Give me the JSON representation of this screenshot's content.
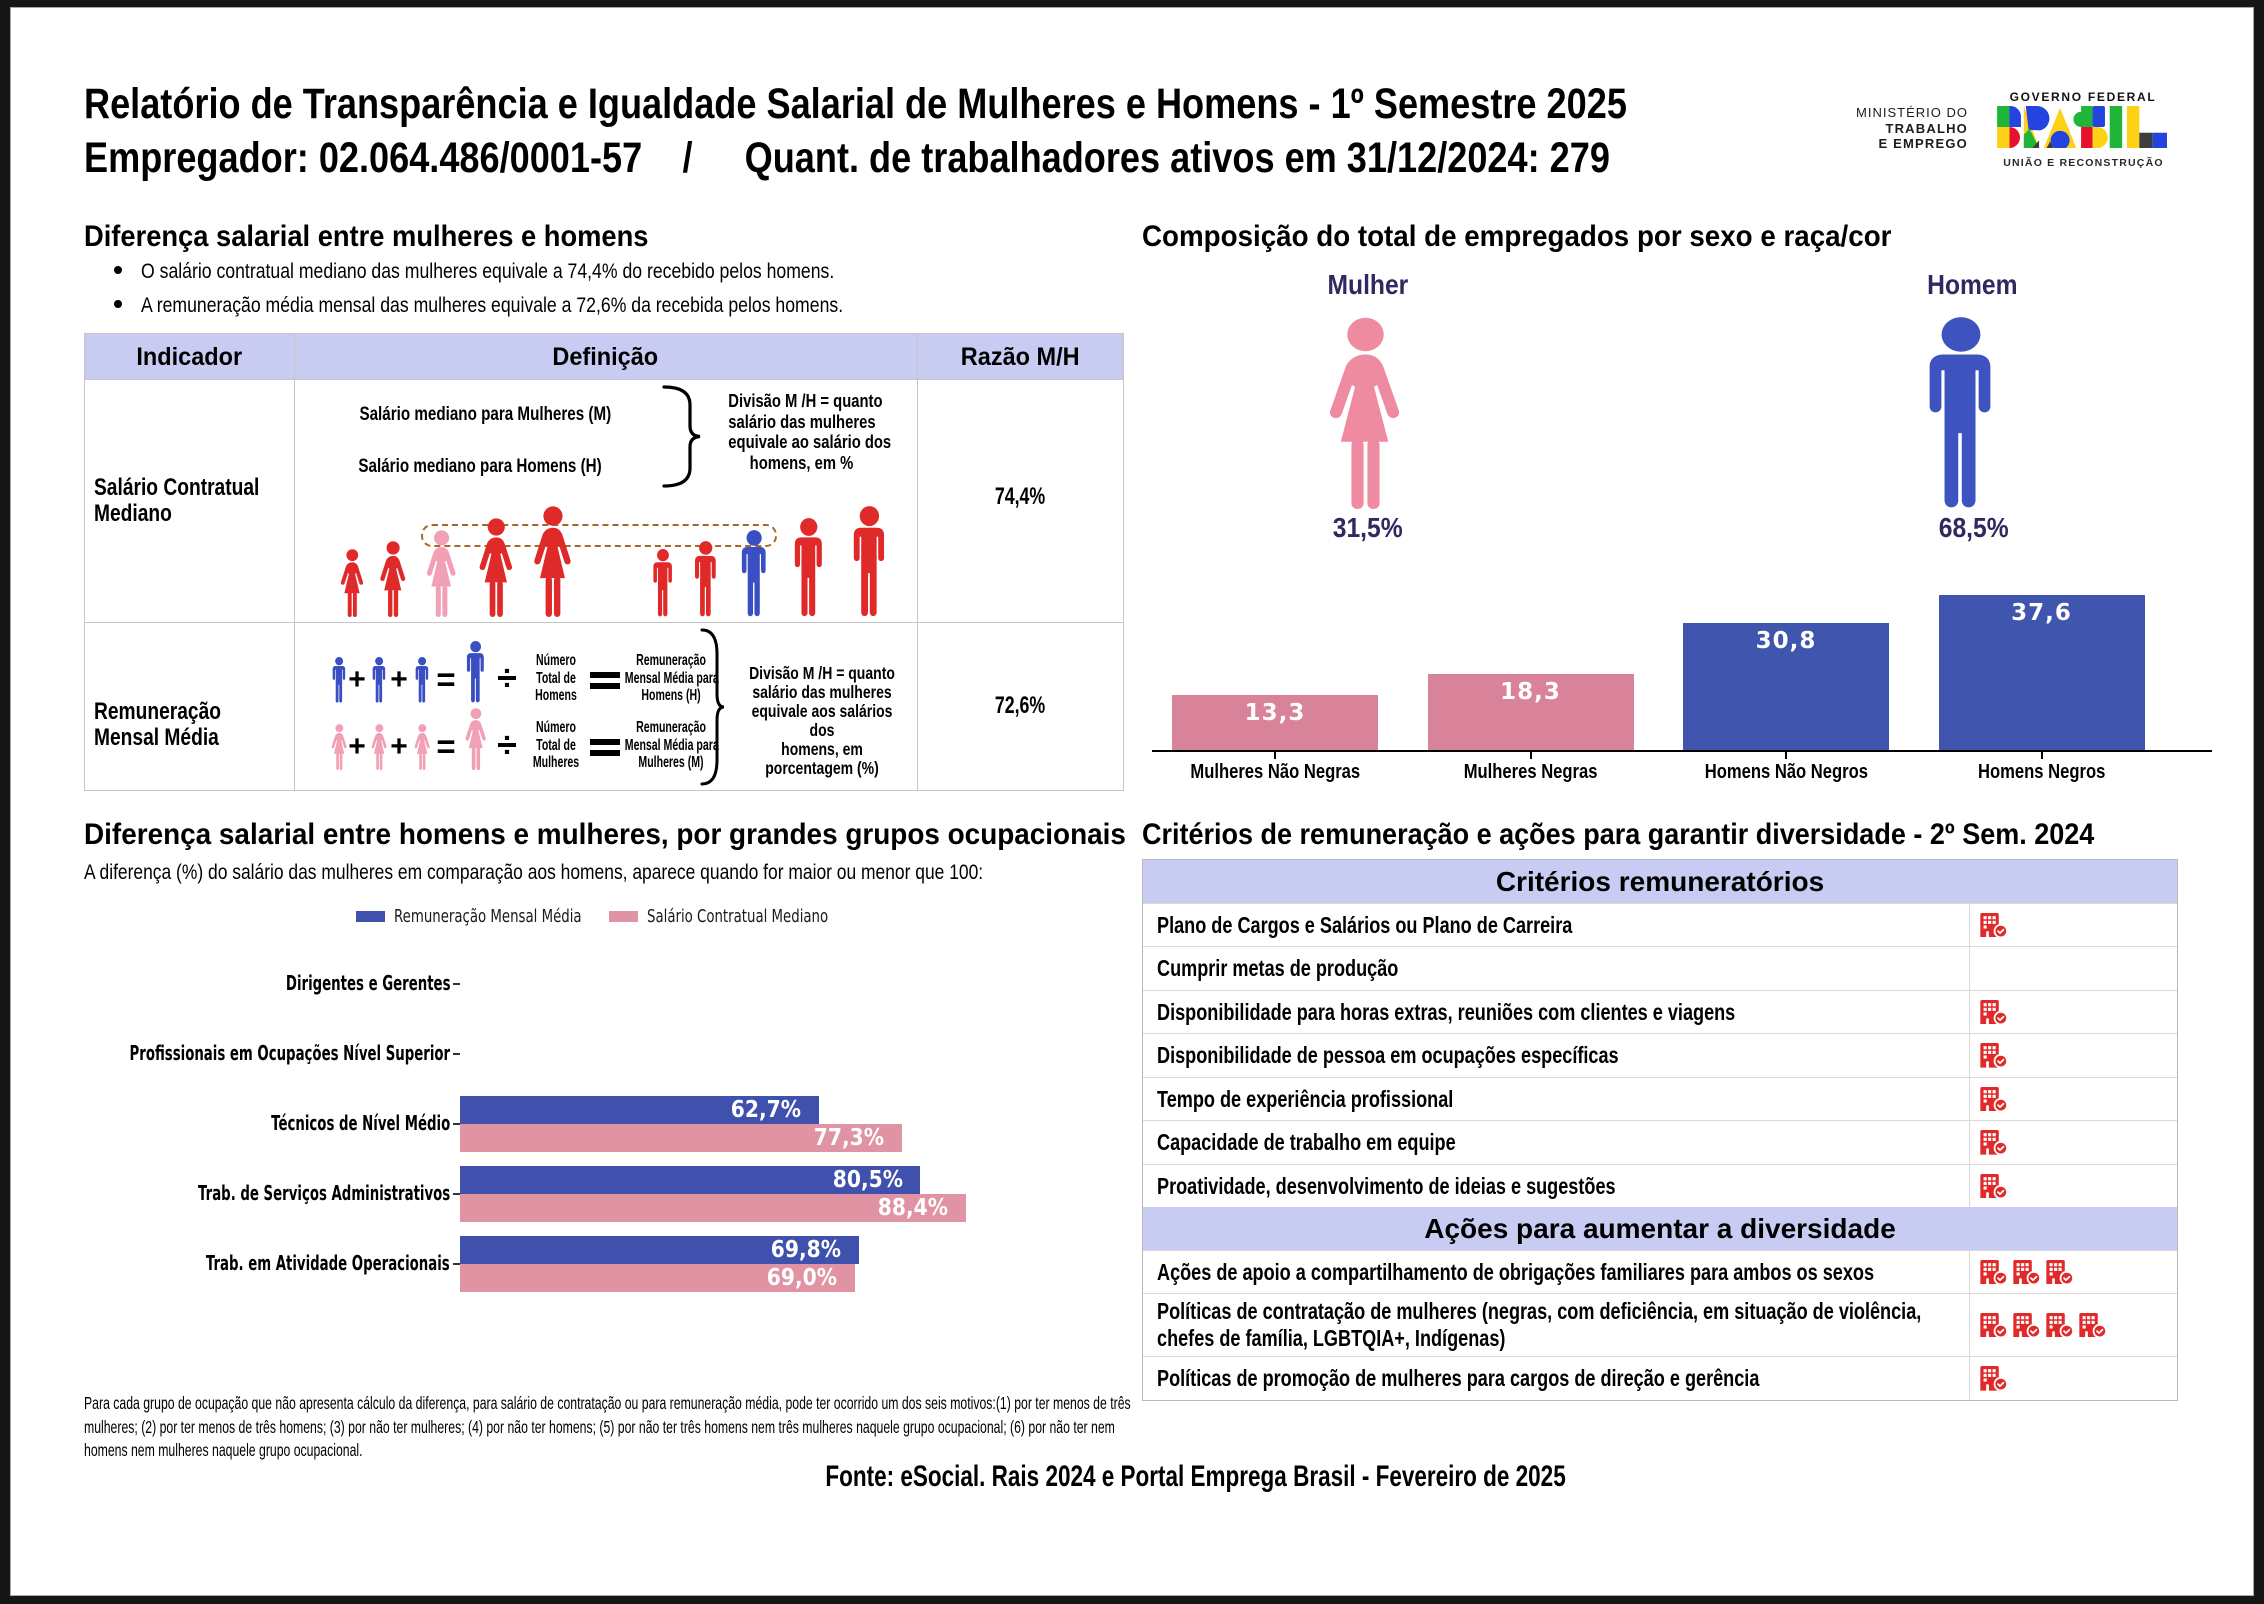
{
  "report": {
    "title": "Relatório de Transparência e Igualdade Salarial de Mulheres e Homens - 1º Semestre 2025",
    "employer": "Empregador: 02.064.486/0001-57",
    "separator": "/",
    "active_workers": "Quant. de trabalhadores ativos em 31/12/2024: 279",
    "footer_source": "Fonte: eSocial. Rais 2024 e Portal Emprega Brasil - Fevereiro de 2025"
  },
  "gov_branding": {
    "ministry_line1": "MINISTÉRIO DO",
    "ministry_line2": "TRABALHO",
    "ministry_line3": "E EMPREGO",
    "government_label": "GOVERNO FEDERAL",
    "brand": "BRASIL",
    "motto": "UNIÃO E RECONSTRUÇÃO"
  },
  "salary_gap": {
    "heading": "Diferença salarial entre mulheres e homens",
    "bullets": [
      "O salário contratual mediano das mulheres equivale a 74,4% do recebido pelos homens.",
      "A remuneração média mensal das mulheres equivale a 72,6% da recebida pelos homens."
    ],
    "table": {
      "headers": [
        "Indicador",
        "Definição",
        "Razão M/H"
      ],
      "row1": {
        "indicator": "Salário Contratual Mediano",
        "def_line1": "Salário mediano para Mulheres (M)",
        "def_line2": "Salário mediano para Homens (H)",
        "explanation": [
          "Divisão M /H = quanto",
          "salário das mulheres",
          "equivale ao salário dos",
          "homens, em %"
        ],
        "ratio": "74,4%",
        "pictograms": {
          "women": 5,
          "men": 5,
          "highlighted_woman_index": 2,
          "highlighted_man_index": 2
        }
      },
      "row2": {
        "indicator": "Remuneração Mensal Média",
        "formula": {
          "plus": "+",
          "equals": "=",
          "divide": "÷",
          "men": {
            "count_label": [
              "Número",
              "Total de",
              "Homens"
            ],
            "result_label": [
              "Remuneração",
              "Mensal Média para",
              "Homens (H)"
            ]
          },
          "women": {
            "count_label": [
              "Número",
              "Total de",
              "Mulheres"
            ],
            "result_label": [
              "Remuneração",
              "Mensal Média para",
              "Mulheres (M)"
            ]
          }
        },
        "explanation": [
          "Divisão M /H = quanto",
          "salário das mulheres",
          "equivale aos salários",
          "dos",
          "homens, em",
          "porcentagem (%)"
        ],
        "ratio": "72,6%"
      }
    }
  },
  "composition": {
    "heading": "Composição do total de empregados por sexo e raça/cor",
    "female_label": "Mulher",
    "female_value": "31,5%",
    "male_label": "Homem",
    "male_value": "68,5%"
  },
  "occupational": {
    "heading": "Diferença salarial entre homens e mulheres, por grandes grupos ocupacionais",
    "subtitle": "A diferença (%) do salário das mulheres em comparação aos homens, aparece quando for maior ou menor que 100:",
    "footnote": "Para cada grupo de ocupação que não apresenta cálculo da diferença, para salário de contratação ou para remuneração média, pode ter ocorrido um dos seis motivos:(1) por ter menos de três mulheres; (2) por ter menos de três homens; (3) por não ter mulheres; (4) por não ter homens; (5) por não ter três homens nem três mulheres naquele grupo ocupacional; (6) por não ter nem homens nem mulheres naquele grupo ocupacional."
  },
  "criteria": {
    "heading": "Critérios de remuneração e ações para garantir diversidade - 2º Sem. 2024",
    "sections": [
      {
        "title": "Critérios remuneratórios",
        "rows": [
          {
            "label": "Plano de Cargos e Salários ou Plano de Carreira",
            "checks": 1
          },
          {
            "label": "Cumprir metas de produção",
            "checks": 0
          },
          {
            "label": "Disponibilidade para horas extras, reuniões com clientes e viagens",
            "checks": 1
          },
          {
            "label": "Disponibilidade de pessoa em ocupações específicas",
            "checks": 1
          },
          {
            "label": "Tempo de experiência profissional",
            "checks": 1
          },
          {
            "label": "Capacidade de trabalho em equipe",
            "checks": 1
          },
          {
            "label": "Proatividade, desenvolvimento de ideias e sugestões",
            "checks": 1
          }
        ]
      },
      {
        "title": "Ações para aumentar a diversidade",
        "rows": [
          {
            "label": "Ações de apoio a compartilhamento de obrigações familiares para ambos os sexos",
            "checks": 3
          },
          {
            "label": "Políticas de contratação de mulheres (negras, com deficiência, em situação de violência, chefes de família, LGBTQIA+, Indígenas)",
            "checks": 4
          },
          {
            "label": "Políticas de promoção de mulheres para cargos de direção e gerência",
            "checks": 1
          }
        ]
      }
    ]
  },
  "chart_data": [
    {
      "id": "composition_by_sex_race",
      "type": "bar",
      "title": "Composição do total de empregados por sexo e raça/cor",
      "categories": [
        "Mulheres Não Negras",
        "Mulheres Negras",
        "Homens Não Negros",
        "Homens Negros"
      ],
      "values": [
        13.3,
        18.3,
        30.8,
        37.6
      ],
      "value_labels": [
        "13,3",
        "18,3",
        "30,8",
        "37,6"
      ],
      "bar_colors": [
        "#d9839a",
        "#d9839a",
        "#3f55ae",
        "#3f55ae"
      ],
      "xlabel": "",
      "ylabel": "",
      "ylim": [
        0,
        40
      ],
      "grid": false,
      "legend": "none",
      "annotations": {
        "female_share": "31,5%",
        "male_share": "68,5%"
      }
    },
    {
      "id": "salary_gap_by_occupation",
      "type": "bar",
      "orientation": "horizontal",
      "categories": [
        "Dirigentes e Gerentes",
        "Profissionais em Ocupações Nível Superior",
        "Técnicos de Nível Médio",
        "Trab. de Serviços Administrativos",
        "Trab. em Atividade Operacionais"
      ],
      "series": [
        {
          "name": "Remuneração Mensal Média",
          "color": "#3f51ad",
          "values": [
            null,
            null,
            62.7,
            80.5,
            69.8
          ],
          "value_labels": [
            "",
            "",
            "62,7%",
            "80,5%",
            "69,8%"
          ]
        },
        {
          "name": "Salário Contratual Mediano",
          "color": "#df93a3",
          "values": [
            null,
            null,
            77.3,
            88.4,
            69.0
          ],
          "value_labels": [
            "",
            "",
            "77,3%",
            "88,4%",
            "69,0%"
          ]
        }
      ],
      "xlim": [
        0,
        100
      ],
      "grid": false,
      "legend_position": "top"
    }
  ],
  "style": {
    "accent_lavender": "#c8ccf2",
    "bar_blue": "#3f55ae",
    "bar_pink": "#d9839a",
    "icon_red": "#e02a2a",
    "icon_pink": "#f2a0b5",
    "icon_blue": "#3a50c2",
    "female_icon_pink": "#ef8ba1",
    "male_icon_blue": "#3c53c0",
    "navy_text": "#2f2960",
    "dashed_highlight": "#a5682a"
  }
}
